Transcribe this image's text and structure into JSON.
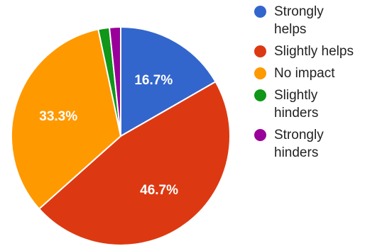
{
  "chart_data": {
    "type": "pie",
    "title": "",
    "slices": [
      {
        "label": "Strongly helps",
        "value": 16.7,
        "display": "16.7%",
        "color": "#3366cc"
      },
      {
        "label": "Slightly helps",
        "value": 46.7,
        "display": "46.7%",
        "color": "#dc3912"
      },
      {
        "label": "No impact",
        "value": 33.3,
        "display": "33.3%",
        "color": "#ff9900"
      },
      {
        "label": "Slightly hinders",
        "value": 1.65,
        "display": "",
        "color": "#109618"
      },
      {
        "label": "Strongly hinders",
        "value": 1.65,
        "display": "",
        "color": "#990099"
      }
    ],
    "legend_position": "right"
  }
}
